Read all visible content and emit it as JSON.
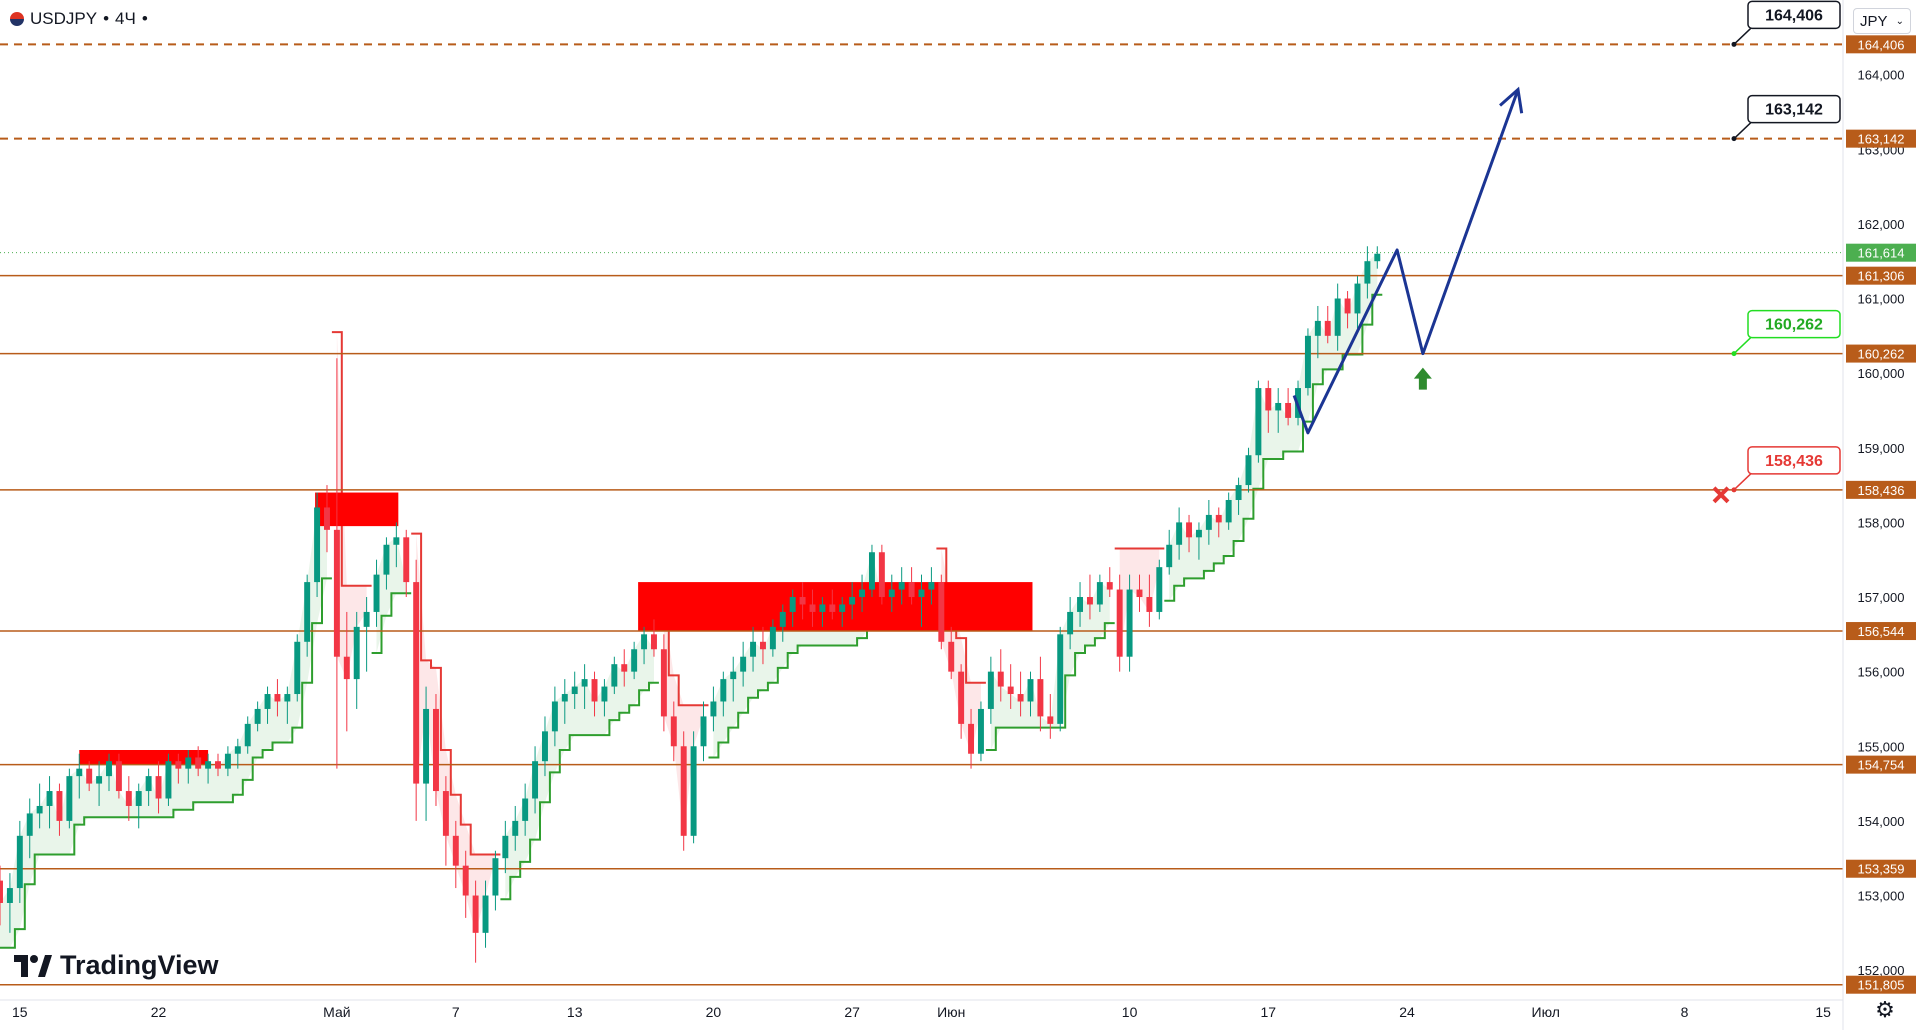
{
  "header": {
    "symbol": "USDJPY",
    "sep1": "•",
    "timeframe": "4Ч",
    "sep2": "•"
  },
  "currency_selector": {
    "value": "JPY",
    "icon": "chevron-down-icon"
  },
  "logo": {
    "text": "TradingView"
  },
  "settings": {
    "icon": "gear-icon"
  },
  "colors": {
    "level": "#b85c1a",
    "target_dash": "#b85c1a",
    "price_tag_bg": "#b85c1a",
    "current_tag_bg": "#4caf50",
    "bull": "#089981",
    "bear": "#f23645",
    "forecast": "#1b3593",
    "support_line": "#2e9e2e",
    "resist_line": "#e53935",
    "green_label": "#22dd22",
    "red_label": "#e53935",
    "arrow_green": "#2e8b2e"
  },
  "chart_data": {
    "type": "candlestick",
    "y_axis": {
      "min": 151.6,
      "max": 165.0,
      "ticks": [
        "152,000",
        "153,000",
        "154,000",
        "155,000",
        "156,000",
        "157,000",
        "158,000",
        "159,000",
        "160,000",
        "161,000",
        "162,000",
        "163,000",
        "164,000"
      ],
      "tick_values": [
        152,
        153,
        154,
        155,
        156,
        157,
        158,
        159,
        160,
        161,
        162,
        163,
        164
      ]
    },
    "x_axis": {
      "ticks": [
        "15",
        "22",
        "Май",
        "7",
        "13",
        "20",
        "27",
        "Июн",
        "10",
        "17",
        "24",
        "Июл",
        "8",
        "15"
      ],
      "tick_days": [
        0,
        7,
        16,
        22,
        28,
        35,
        42,
        47,
        56,
        63,
        70,
        77,
        84,
        91
      ],
      "day_range": [
        -1,
        92
      ]
    },
    "current_price": {
      "value": 161.614,
      "label": "161,614"
    },
    "levels": [
      {
        "value": 164.406,
        "label": "164,406",
        "style": "dashed"
      },
      {
        "value": 163.142,
        "label": "163,142",
        "style": "dashed"
      },
      {
        "value": 161.306,
        "label": "161,306",
        "style": "solid"
      },
      {
        "value": 160.262,
        "label": "160,262",
        "style": "solid"
      },
      {
        "value": 158.436,
        "label": "158,436",
        "style": "solid"
      },
      {
        "value": 156.544,
        "label": "156,544",
        "style": "solid"
      },
      {
        "value": 154.754,
        "label": "154,754",
        "style": "solid"
      },
      {
        "value": 153.359,
        "label": "153,359",
        "style": "solid"
      },
      {
        "value": 151.805,
        "label": "151,805",
        "style": "solid"
      }
    ],
    "callouts": [
      {
        "label": "164,406",
        "value": 164.406,
        "color": "black"
      },
      {
        "label": "163,142",
        "value": 163.142,
        "color": "black"
      },
      {
        "label": "160,262",
        "value": 160.262,
        "color": "green"
      },
      {
        "label": "158,436",
        "value": 158.436,
        "color": "red"
      }
    ],
    "zones": [
      {
        "day_from": 3,
        "day_to": 9.5,
        "low": 154.75,
        "high": 154.95
      },
      {
        "day_from": 14.9,
        "day_to": 19.1,
        "low": 157.95,
        "high": 158.4
      },
      {
        "day_from": 31.2,
        "day_to": 51.1,
        "low": 156.55,
        "high": 157.2
      }
    ],
    "candles": [
      [
        -1,
        153.2,
        153.4,
        152.6,
        152.9
      ],
      [
        -0.5,
        152.9,
        153.3,
        152.5,
        153.1
      ],
      [
        0,
        153.1,
        154.0,
        152.9,
        153.8
      ],
      [
        0.5,
        153.8,
        154.3,
        153.5,
        154.1
      ],
      [
        1,
        154.1,
        154.5,
        153.9,
        154.2
      ],
      [
        1.5,
        154.2,
        154.6,
        153.9,
        154.4
      ],
      [
        2,
        154.4,
        154.5,
        153.8,
        154.0
      ],
      [
        2.5,
        154.0,
        154.7,
        153.9,
        154.6
      ],
      [
        3,
        154.6,
        154.9,
        154.3,
        154.7
      ],
      [
        3.5,
        154.7,
        154.8,
        154.4,
        154.5
      ],
      [
        4,
        154.5,
        154.8,
        154.2,
        154.6
      ],
      [
        4.5,
        154.6,
        154.9,
        154.4,
        154.8
      ],
      [
        5,
        154.8,
        154.9,
        154.3,
        154.4
      ],
      [
        5.5,
        154.4,
        154.6,
        154.0,
        154.2
      ],
      [
        6,
        154.2,
        154.5,
        153.9,
        154.4
      ],
      [
        6.5,
        154.4,
        154.7,
        154.2,
        154.6
      ],
      [
        7,
        154.6,
        154.8,
        154.1,
        154.3
      ],
      [
        7.5,
        154.3,
        154.9,
        154.2,
        154.8
      ],
      [
        8,
        154.8,
        154.9,
        154.5,
        154.7
      ],
      [
        8.5,
        154.7,
        154.95,
        154.5,
        154.85
      ],
      [
        9,
        154.85,
        155.0,
        154.6,
        154.7
      ],
      [
        9.5,
        154.7,
        154.9,
        154.5,
        154.8
      ],
      [
        10,
        154.8,
        154.9,
        154.6,
        154.7
      ],
      [
        10.5,
        154.7,
        155.0,
        154.6,
        154.9
      ],
      [
        11,
        154.9,
        155.1,
        154.7,
        155.0
      ],
      [
        11.5,
        155.0,
        155.4,
        154.9,
        155.3
      ],
      [
        12,
        155.3,
        155.6,
        155.2,
        155.5
      ],
      [
        12.5,
        155.5,
        155.8,
        155.3,
        155.7
      ],
      [
        13,
        155.7,
        155.9,
        155.4,
        155.6
      ],
      [
        13.5,
        155.6,
        155.8,
        155.3,
        155.7
      ],
      [
        14,
        155.7,
        156.5,
        155.6,
        156.4
      ],
      [
        14.5,
        156.4,
        157.3,
        156.2,
        157.2
      ],
      [
        15,
        157.2,
        158.4,
        157.0,
        158.2
      ],
      [
        15.5,
        158.2,
        158.5,
        157.6,
        157.9
      ],
      [
        16,
        157.9,
        160.2,
        154.7,
        156.2
      ],
      [
        16.5,
        156.2,
        156.8,
        155.2,
        155.9
      ],
      [
        17,
        155.9,
        156.8,
        155.5,
        156.6
      ],
      [
        17.5,
        156.6,
        157.0,
        156.0,
        156.8
      ],
      [
        18,
        156.8,
        157.5,
        156.6,
        157.3
      ],
      [
        18.5,
        157.3,
        157.8,
        157.1,
        157.7
      ],
      [
        19,
        157.7,
        158.0,
        157.4,
        157.8
      ],
      [
        19.5,
        157.8,
        157.9,
        157.0,
        157.2
      ],
      [
        20,
        157.2,
        157.5,
        154.0,
        154.5
      ],
      [
        20.5,
        154.5,
        155.8,
        154.0,
        155.5
      ],
      [
        21,
        155.5,
        155.7,
        154.2,
        154.4
      ],
      [
        21.5,
        154.4,
        154.6,
        153.4,
        153.8
      ],
      [
        22,
        153.8,
        154.0,
        153.1,
        153.4
      ],
      [
        22.5,
        153.4,
        153.6,
        152.7,
        153.0
      ],
      [
        23,
        153.0,
        153.2,
        152.1,
        152.5
      ],
      [
        23.5,
        152.5,
        153.2,
        152.3,
        153.0
      ],
      [
        24,
        153.0,
        153.6,
        152.8,
        153.5
      ],
      [
        24.5,
        153.5,
        154.0,
        153.3,
        153.8
      ],
      [
        25,
        153.8,
        154.2,
        153.6,
        154.0
      ],
      [
        25.5,
        154.0,
        154.5,
        153.8,
        154.3
      ],
      [
        26,
        154.3,
        155.0,
        154.1,
        154.8
      ],
      [
        26.5,
        154.8,
        155.4,
        154.6,
        155.2
      ],
      [
        27,
        155.2,
        155.8,
        155.0,
        155.6
      ],
      [
        27.5,
        155.6,
        155.9,
        155.3,
        155.7
      ],
      [
        28,
        155.7,
        156.0,
        155.5,
        155.8
      ],
      [
        28.5,
        155.8,
        156.1,
        155.5,
        155.9
      ],
      [
        29,
        155.9,
        156.0,
        155.4,
        155.6
      ],
      [
        29.5,
        155.6,
        155.9,
        155.4,
        155.8
      ],
      [
        30,
        155.8,
        156.2,
        155.7,
        156.1
      ],
      [
        30.5,
        156.1,
        156.3,
        155.8,
        156.0
      ],
      [
        31,
        156.0,
        156.4,
        155.9,
        156.3
      ],
      [
        31.5,
        156.3,
        156.6,
        156.1,
        156.5
      ],
      [
        32,
        156.5,
        156.7,
        156.2,
        156.3
      ],
      [
        32.5,
        156.3,
        156.5,
        155.2,
        155.4
      ],
      [
        33,
        155.4,
        155.6,
        154.8,
        155.0
      ],
      [
        33.5,
        155.0,
        155.2,
        153.6,
        153.8
      ],
      [
        34,
        153.8,
        155.2,
        153.7,
        155.0
      ],
      [
        34.5,
        155.0,
        155.6,
        154.8,
        155.4
      ],
      [
        35,
        155.4,
        155.8,
        155.2,
        155.6
      ],
      [
        35.5,
        155.6,
        156.0,
        155.4,
        155.9
      ],
      [
        36,
        155.9,
        156.2,
        155.6,
        156.0
      ],
      [
        36.5,
        156.0,
        156.4,
        155.8,
        156.2
      ],
      [
        37,
        156.2,
        156.6,
        156.0,
        156.4
      ],
      [
        37.5,
        156.4,
        156.6,
        156.1,
        156.3
      ],
      [
        38,
        156.3,
        156.7,
        156.2,
        156.6
      ],
      [
        38.5,
        156.6,
        156.9,
        156.4,
        156.8
      ],
      [
        39,
        156.8,
        157.1,
        156.6,
        157.0
      ],
      [
        39.5,
        157.0,
        157.2,
        156.7,
        156.9
      ],
      [
        40,
        156.9,
        157.1,
        156.6,
        156.8
      ],
      [
        40.5,
        156.8,
        157.0,
        156.6,
        156.9
      ],
      [
        41,
        156.9,
        157.1,
        156.7,
        156.8
      ],
      [
        41.5,
        156.8,
        157.0,
        156.6,
        156.9
      ],
      [
        42,
        156.9,
        157.2,
        156.7,
        157.0
      ],
      [
        42.5,
        157.0,
        157.3,
        156.8,
        157.1
      ],
      [
        43,
        157.1,
        157.7,
        157.0,
        157.6
      ],
      [
        43.5,
        157.6,
        157.7,
        156.9,
        157.0
      ],
      [
        44,
        157.0,
        157.3,
        156.8,
        157.1
      ],
      [
        44.5,
        157.1,
        157.4,
        156.9,
        157.2
      ],
      [
        45,
        157.2,
        157.4,
        156.9,
        157.0
      ],
      [
        45.5,
        157.0,
        157.3,
        156.6,
        157.1
      ],
      [
        46,
        157.1,
        157.4,
        156.9,
        157.2
      ],
      [
        46.5,
        157.2,
        157.3,
        156.3,
        156.4
      ],
      [
        47,
        156.4,
        156.6,
        155.9,
        156.0
      ],
      [
        47.5,
        156.0,
        156.1,
        155.1,
        155.3
      ],
      [
        48,
        155.3,
        155.5,
        154.7,
        154.9
      ],
      [
        48.5,
        154.9,
        155.6,
        154.8,
        155.5
      ],
      [
        49,
        155.5,
        156.2,
        155.3,
        156.0
      ],
      [
        49.5,
        156.0,
        156.3,
        155.6,
        155.8
      ],
      [
        50,
        155.8,
        156.1,
        155.5,
        155.7
      ],
      [
        50.5,
        155.7,
        156.0,
        155.4,
        155.6
      ],
      [
        51,
        155.6,
        156.0,
        155.4,
        155.9
      ],
      [
        51.5,
        155.9,
        156.2,
        155.2,
        155.4
      ],
      [
        52,
        155.4,
        155.7,
        155.1,
        155.3
      ],
      [
        52.5,
        155.3,
        156.6,
        155.2,
        156.5
      ],
      [
        53,
        156.5,
        157.0,
        156.3,
        156.8
      ],
      [
        53.5,
        156.8,
        157.2,
        156.6,
        157.0
      ],
      [
        54,
        157.0,
        157.3,
        156.7,
        156.9
      ],
      [
        54.5,
        156.9,
        157.3,
        156.8,
        157.2
      ],
      [
        55,
        157.2,
        157.4,
        157.0,
        157.1
      ],
      [
        55.5,
        157.1,
        157.3,
        156.0,
        156.2
      ],
      [
        56,
        156.2,
        157.3,
        156.0,
        157.1
      ],
      [
        56.5,
        157.1,
        157.3,
        156.8,
        157.0
      ],
      [
        57,
        157.0,
        157.3,
        156.6,
        156.8
      ],
      [
        57.5,
        156.8,
        157.5,
        156.7,
        157.4
      ],
      [
        58,
        157.4,
        157.9,
        157.3,
        157.7
      ],
      [
        58.5,
        157.7,
        158.2,
        157.5,
        158.0
      ],
      [
        59,
        158.0,
        158.1,
        157.6,
        157.8
      ],
      [
        59.5,
        157.8,
        158.0,
        157.5,
        157.9
      ],
      [
        60,
        157.9,
        158.3,
        157.7,
        158.1
      ],
      [
        60.5,
        158.1,
        158.2,
        157.8,
        158.0
      ],
      [
        61,
        158.0,
        158.4,
        157.9,
        158.3
      ],
      [
        61.5,
        158.3,
        158.6,
        158.1,
        158.5
      ],
      [
        62,
        158.5,
        159.0,
        158.4,
        158.9
      ],
      [
        62.5,
        158.9,
        159.9,
        158.8,
        159.8
      ],
      [
        63,
        159.8,
        159.9,
        159.2,
        159.5
      ],
      [
        63.5,
        159.5,
        159.8,
        159.2,
        159.6
      ],
      [
        64,
        159.6,
        159.8,
        159.3,
        159.4
      ],
      [
        64.5,
        159.4,
        159.9,
        159.3,
        159.8
      ],
      [
        65,
        159.8,
        160.6,
        159.7,
        160.5
      ],
      [
        65.5,
        160.5,
        160.9,
        160.2,
        160.7
      ],
      [
        66,
        160.7,
        160.9,
        160.4,
        160.5
      ],
      [
        66.5,
        160.5,
        161.2,
        160.3,
        161.0
      ],
      [
        67,
        161.0,
        161.1,
        160.6,
        160.8
      ],
      [
        67.5,
        160.8,
        161.3,
        160.6,
        161.2
      ],
      [
        68,
        161.2,
        161.7,
        161.0,
        161.5
      ],
      [
        68.5,
        161.5,
        161.7,
        161.4,
        161.6
      ]
    ],
    "forecast_path": [
      {
        "day": 64.3,
        "value": 159.7
      },
      {
        "day": 65.0,
        "value": 159.2
      },
      {
        "day": 69.5,
        "value": 161.65
      },
      {
        "day": 70.8,
        "value": 160.262
      },
      {
        "day": 75.6,
        "value": 163.8
      }
    ]
  }
}
